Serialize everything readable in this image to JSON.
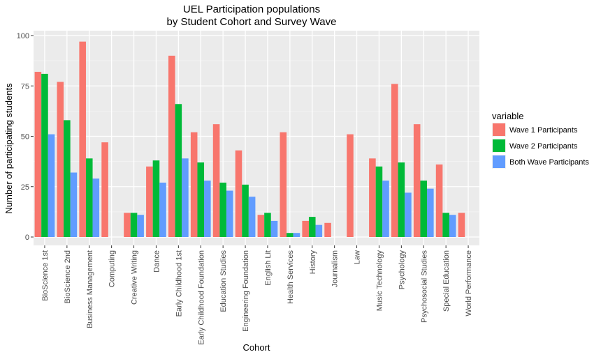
{
  "chart_data": {
    "type": "bar",
    "title_line1": "UEL Participation populations",
    "title_line2": "by Student Cohort and Survey Wave",
    "xlabel": "Cohort",
    "ylabel": "Number of participating students",
    "ylim": [
      0,
      100
    ],
    "yticks": [
      0,
      25,
      50,
      75,
      100
    ],
    "grid": true,
    "legend_title": "variable",
    "legend_position": "right",
    "categories": [
      "BioScience 1st",
      "BioScience 2nd",
      "Business Management",
      "Computing",
      "Creative Writing",
      "Dance",
      "Early Childhood 1st",
      "Early Childhood Foundation",
      "Education Studies",
      "Engineering Foundation",
      "English Lit",
      "Health Services",
      "History",
      "Journalism",
      "Law",
      "Music Technology",
      "Psychology",
      "Psychosocial Studies",
      "Special Education",
      "World Performance"
    ],
    "series": [
      {
        "name": "Wave 1 Participants",
        "color": "#F8766D",
        "values": [
          82,
          77,
          97,
          47,
          12,
          35,
          90,
          52,
          56,
          43,
          11,
          52,
          8,
          7,
          51,
          39,
          76,
          56,
          36,
          12
        ]
      },
      {
        "name": "Wave 2 Participants",
        "color": "#00BA38",
        "values": [
          81,
          58,
          39,
          0,
          12,
          38,
          66,
          37,
          27,
          26,
          12,
          2,
          10,
          0,
          0,
          35,
          37,
          28,
          12,
          0
        ]
      },
      {
        "name": "Both Wave Participants",
        "color": "#619CFF",
        "values": [
          51,
          32,
          29,
          0,
          11,
          27,
          39,
          28,
          23,
          20,
          8,
          2,
          6,
          0,
          0,
          28,
          22,
          24,
          11,
          0
        ]
      }
    ]
  }
}
